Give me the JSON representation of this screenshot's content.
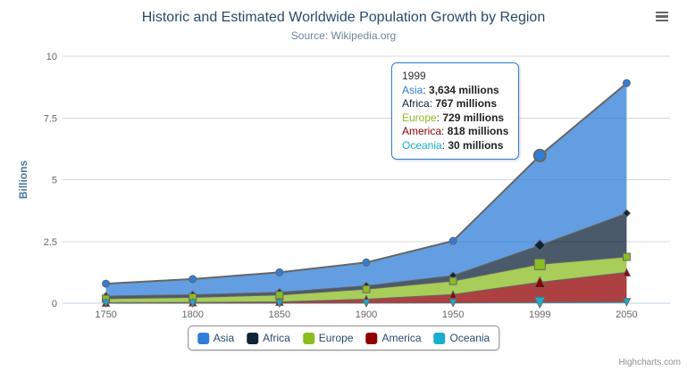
{
  "header": {
    "title": "Historic and Estimated Worldwide Population Growth by Region",
    "subtitle": "Source: Wikipedia.org"
  },
  "y_axis": {
    "title": "Billions",
    "ticks": [
      "0",
      "2.5",
      "5",
      "7.5",
      "10"
    ]
  },
  "x_axis": {
    "categories": [
      "1750",
      "1800",
      "1850",
      "1900",
      "1950",
      "1999",
      "2050"
    ]
  },
  "legend": {
    "items": [
      {
        "label": "Asia",
        "color": "#2f7ed8"
      },
      {
        "label": "Africa",
        "color": "#0d233a"
      },
      {
        "label": "Europe",
        "color": "#8bbc21"
      },
      {
        "label": "America",
        "color": "#910000"
      },
      {
        "label": "Oceania",
        "color": "#1aadce"
      }
    ]
  },
  "tooltip": {
    "header": "1999",
    "border_color": "#2f7ed8",
    "rows": [
      {
        "label": "Asia",
        "color": "#2f7ed8",
        "value": "3,634 millions"
      },
      {
        "label": "Africa",
        "color": "#0d233a",
        "value": "767 millions"
      },
      {
        "label": "Europe",
        "color": "#8bbc21",
        "value": "729 millions"
      },
      {
        "label": "America",
        "color": "#910000",
        "value": "818 millions"
      },
      {
        "label": "Oceania",
        "color": "#1aadce",
        "value": "30 millions"
      }
    ]
  },
  "credits": {
    "label": "Highcharts.com"
  },
  "chart_data": {
    "type": "area",
    "stacking": "normal",
    "title": "Historic and Estimated Worldwide Population Growth by Region",
    "subtitle": "Source: Wikipedia.org",
    "xlabel": "",
    "ylabel": "Billions",
    "values_unit": "millions",
    "ylim_billions": [
      0,
      10
    ],
    "yticks_billions": [
      0,
      2.5,
      5,
      7.5,
      10
    ],
    "grid": true,
    "legend_position": "bottom",
    "line_color": "#666666",
    "fill_opacity": 0.75,
    "categories": [
      "1750",
      "1800",
      "1850",
      "1900",
      "1950",
      "1999",
      "2050"
    ],
    "series": [
      {
        "name": "Asia",
        "color": "#2f7ed8",
        "marker": "circle",
        "values": [
          502,
          635,
          809,
          947,
          1402,
          3634,
          5268
        ]
      },
      {
        "name": "Africa",
        "color": "#0d233a",
        "marker": "diamond",
        "values": [
          106,
          107,
          111,
          133,
          221,
          767,
          1766
        ]
      },
      {
        "name": "Europe",
        "color": "#8bbc21",
        "marker": "square",
        "values": [
          163,
          203,
          276,
          408,
          547,
          729,
          628
        ]
      },
      {
        "name": "America",
        "color": "#910000",
        "marker": "triangle",
        "values": [
          18,
          31,
          54,
          156,
          339,
          818,
          1201
        ]
      },
      {
        "name": "Oceania",
        "color": "#1aadce",
        "marker": "triangle-down",
        "values": [
          2,
          2,
          2,
          6,
          13,
          30,
          46
        ]
      }
    ],
    "stack_order_bottom_to_top": [
      "Oceania",
      "America",
      "Europe",
      "Africa",
      "Asia"
    ],
    "hover": {
      "category": "1999",
      "index": 5,
      "series": "Asia"
    }
  }
}
